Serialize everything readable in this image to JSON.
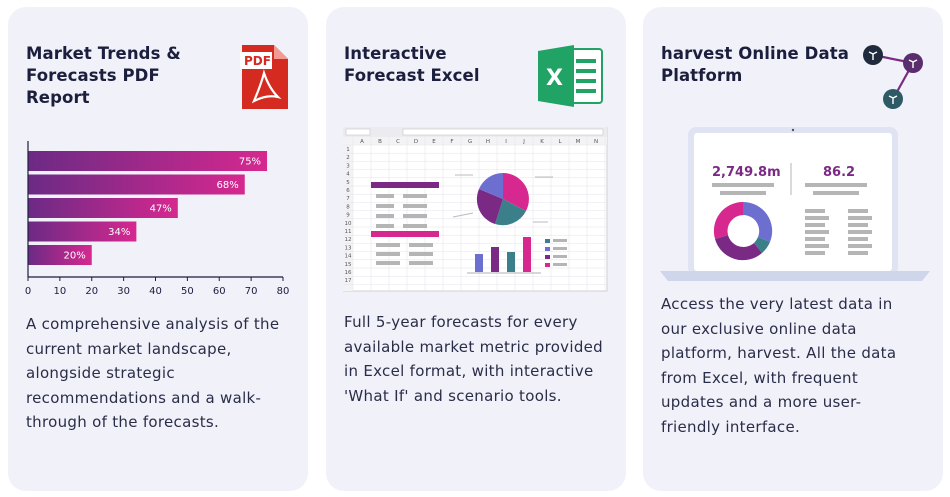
{
  "cards": [
    {
      "title": "Market Trends &\nForecasts PDF\nReport",
      "icon": "pdf-file-icon",
      "icon_label": "PDF",
      "description": "A comprehensive analysis of the\ncurrent market landscape,\nalongside strategic\nrecommendations and a walk-\nthrough of the forecasts."
    },
    {
      "title": "Interactive\nForecast Excel",
      "icon": "excel-icon",
      "icon_label": "X",
      "description": "Full 5-year forecasts for every\navailable market metric provided\nin Excel format, with interactive\n'What If' and scenario tools."
    },
    {
      "title": "harvest Online Data\nPlatform",
      "icon": "network-nodes-icon",
      "description": "Access the very latest data in\nour exclusive online data\nplatform, harvest. All the data\nfrom Excel, with frequent\nupdates and a more user-\nfriendly interface.",
      "dashboard": {
        "metric_1": "2,749.8m",
        "metric_2": "86.2"
      }
    }
  ],
  "chart_data": {
    "type": "bar",
    "orientation": "horizontal",
    "values": [
      75,
      68,
      47,
      34,
      20
    ],
    "labels": [
      "75%",
      "68%",
      "47%",
      "34%",
      "20%"
    ],
    "xlim": [
      0,
      80
    ],
    "xticks": [
      "0",
      "10",
      "20",
      "30",
      "40",
      "50",
      "60",
      "70",
      "80"
    ]
  },
  "colors": {
    "card_bg": "#f1f1f9",
    "title": "#1b1e3c",
    "bar_start": "#6b2a85",
    "bar_end": "#d6288f",
    "pdf_red": "#d52a1f",
    "excel_green": "#21a366",
    "accent_purple": "#7a2a84",
    "teal": "#3a7f8a"
  }
}
